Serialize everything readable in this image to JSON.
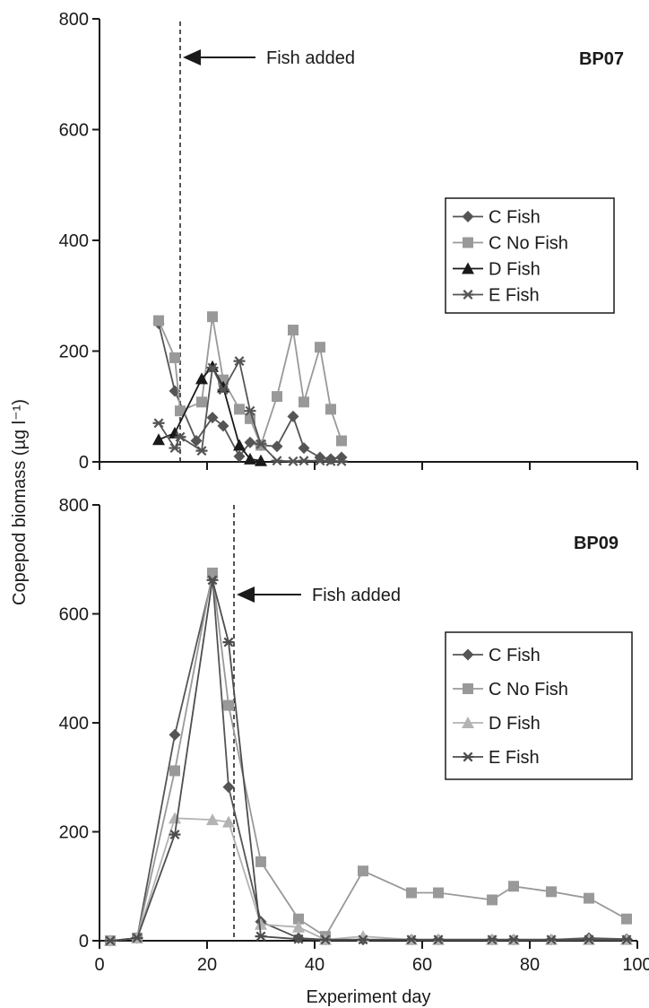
{
  "chart_data": [
    {
      "type": "line",
      "panel_label": "BP07",
      "annotation": "Fish added",
      "fish_added_day": 15,
      "xlim": [
        0,
        100
      ],
      "ylim": [
        0,
        800
      ],
      "yticks": [
        "0",
        "200",
        "400",
        "600",
        "800"
      ],
      "xticks": [
        "",
        "",
        "",
        "",
        "",
        ""
      ],
      "xlabel": "",
      "ylabel": "Copepod biomass (µg l⁻¹)",
      "grid": false,
      "legend_position": "right",
      "series": [
        {
          "name": "C Fish",
          "color": "#555555",
          "marker": "diamond",
          "x": [
            11,
            14,
            18,
            21,
            23,
            26,
            28,
            30,
            33,
            36,
            38,
            41,
            43,
            45
          ],
          "y": [
            250,
            128,
            38,
            80,
            65,
            10,
            35,
            30,
            28,
            82,
            25,
            8,
            5,
            8
          ]
        },
        {
          "name": "C No Fish",
          "color": "#999999",
          "marker": "square",
          "x": [
            11,
            14,
            15,
            19,
            21,
            23,
            26,
            28,
            30,
            33,
            36,
            38,
            41,
            43,
            45
          ],
          "y": [
            255,
            188,
            92,
            108,
            262,
            148,
            95,
            78,
            30,
            118,
            238,
            108,
            207,
            95,
            38
          ]
        },
        {
          "name": "D Fish",
          "color": "#1a1a1a",
          "marker": "triangle",
          "x": [
            11,
            14,
            19,
            21,
            23,
            26,
            28,
            30
          ],
          "y": [
            40,
            52,
            150,
            172,
            135,
            30,
            5,
            2
          ]
        },
        {
          "name": "E Fish",
          "color": "#555555",
          "marker": "star",
          "x": [
            11,
            14,
            15,
            19,
            21,
            23,
            26,
            28,
            30,
            33,
            36,
            38,
            41,
            43,
            45
          ],
          "y": [
            70,
            25,
            45,
            20,
            170,
            130,
            182,
            92,
            32,
            2,
            1,
            2,
            2,
            1,
            1
          ]
        }
      ]
    },
    {
      "type": "line",
      "panel_label": "BP09",
      "annotation": "Fish added",
      "fish_added_day": 25,
      "xlim": [
        0,
        100
      ],
      "ylim": [
        0,
        800
      ],
      "yticks": [
        "0",
        "200",
        "400",
        "600",
        "800"
      ],
      "xticks": [
        "0",
        "20",
        "40",
        "60",
        "80",
        "100"
      ],
      "xlabel": "Experiment day",
      "ylabel": "Copepod biomass (µg l⁻¹)",
      "grid": false,
      "legend_position": "right",
      "series": [
        {
          "name": "C Fish",
          "color": "#555555",
          "marker": "diamond",
          "x": [
            2,
            7,
            14,
            21,
            24,
            30,
            37,
            42,
            49,
            58,
            63,
            73,
            77,
            84,
            91,
            98
          ],
          "y": [
            0,
            5,
            378,
            668,
            282,
            35,
            5,
            2,
            2,
            2,
            2,
            2,
            2,
            2,
            5,
            3
          ]
        },
        {
          "name": "C No Fish",
          "color": "#999999",
          "marker": "square",
          "x": [
            2,
            7,
            14,
            21,
            24,
            30,
            37,
            42,
            49,
            58,
            63,
            73,
            77,
            84,
            91,
            98
          ],
          "y": [
            0,
            5,
            312,
            675,
            432,
            145,
            40,
            8,
            128,
            88,
            88,
            75,
            100,
            90,
            78,
            40
          ]
        },
        {
          "name": "D Fish",
          "color": "#b3b3b3",
          "marker": "triangle",
          "x": [
            2,
            7,
            14,
            21,
            24,
            30,
            37,
            42,
            49,
            58,
            63,
            73,
            77,
            84,
            91,
            98
          ],
          "y": [
            0,
            5,
            225,
            222,
            218,
            30,
            25,
            2,
            8,
            2,
            2,
            2,
            2,
            2,
            2,
            2
          ]
        },
        {
          "name": "E Fish",
          "color": "#4d4d4d",
          "marker": "star",
          "x": [
            2,
            7,
            14,
            21,
            24,
            30,
            37,
            42,
            49,
            58,
            63,
            73,
            77,
            84,
            91,
            98
          ],
          "y": [
            0,
            5,
            195,
            662,
            548,
            8,
            3,
            2,
            2,
            2,
            2,
            2,
            2,
            2,
            2,
            2
          ]
        }
      ]
    }
  ]
}
